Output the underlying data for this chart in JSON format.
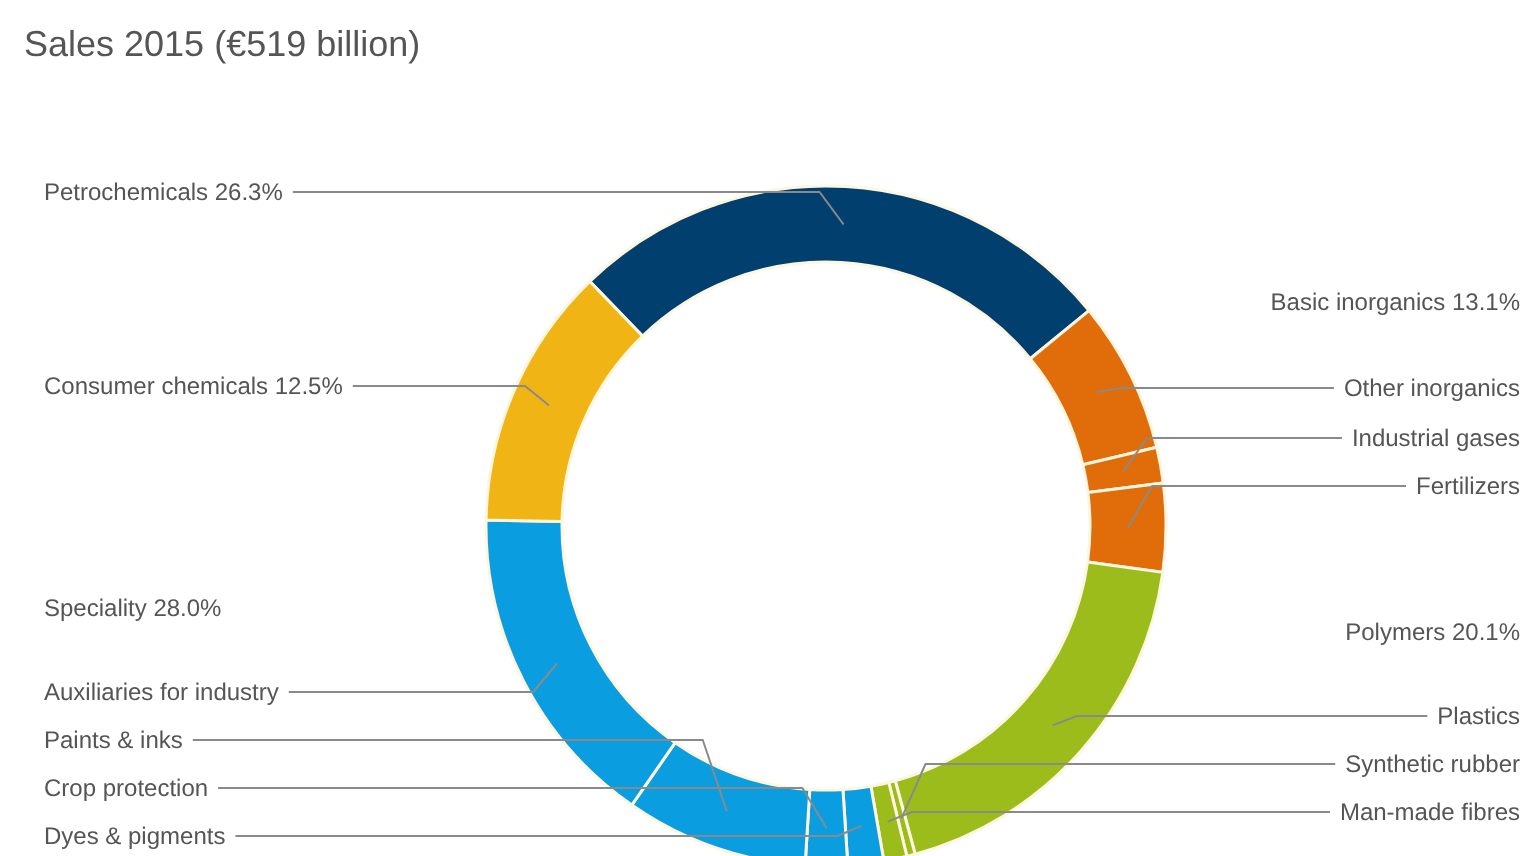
{
  "chart_data": {
    "type": "donut",
    "title": "Sales 2015 (€519 billion)",
    "categories": [
      "Petrochemicals",
      "Other inorganics",
      "Industrial gases",
      "Fertilizers",
      "Plastics",
      "Synthetic rubber",
      "Man-made fibres",
      "Dyes & pigments",
      "Crop protection",
      "Paints & inks",
      "Auxiliaries for industry",
      "Consumer chemicals"
    ],
    "values": [
      26.3,
      7.2,
      1.7,
      4.2,
      18.6,
      0.4,
      1.1,
      1.7,
      2.0,
      8.7,
      15.6,
      12.5
    ],
    "colors": [
      "#003f6e",
      "#e06c0a",
      "#e06c0a",
      "#e06c0a",
      "#9cbc1c",
      "#9cbc1c",
      "#9cbc1c",
      "#0a9ee0",
      "#0a9ee0",
      "#0a9ee0",
      "#0a9ee0",
      "#f0b414"
    ],
    "value_labels": [
      "26.3%",
      null,
      null,
      null,
      null,
      null,
      null,
      null,
      null,
      null,
      null,
      "12.5%"
    ],
    "annotations": [
      "Basic inorganics 13.1%",
      "Polymers 20.1%",
      "Speciality 28.0%"
    ]
  }
}
